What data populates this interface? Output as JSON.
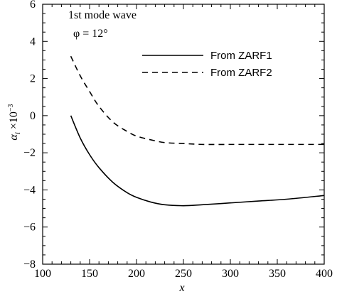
{
  "chart_data": {
    "type": "line",
    "title": "",
    "xlabel": "x",
    "ylabel": "α_i ×10^-3",
    "xlim": [
      100,
      400
    ],
    "ylim": [
      -8,
      6
    ],
    "x_ticks": [
      100,
      150,
      200,
      250,
      300,
      350,
      400
    ],
    "x_tick_labels": [
      "100",
      "150",
      "200",
      "250",
      "300",
      "350",
      "400"
    ],
    "y_ticks": [
      6,
      4,
      2,
      0,
      -2,
      -4,
      -6,
      -8
    ],
    "y_tick_labels": [
      "6",
      "4",
      "2",
      "0",
      "−2",
      "−4",
      "−6",
      "−8"
    ],
    "annotations": [
      "1st mode wave",
      "φ = 12°"
    ],
    "legend_position": "upper-right",
    "grid": false,
    "series": [
      {
        "name": "From ZARF1",
        "style": "solid",
        "color": "#000000",
        "x": [
          130,
          140,
          150,
          160,
          175,
          190,
          200,
          215,
          230,
          250,
          270,
          300,
          330,
          360,
          400
        ],
        "y": [
          0.0,
          -1.2,
          -2.1,
          -2.8,
          -3.6,
          -4.15,
          -4.4,
          -4.65,
          -4.8,
          -4.85,
          -4.8,
          -4.7,
          -4.6,
          -4.5,
          -4.3
        ]
      },
      {
        "name": "From ZARF2",
        "style": "dashed",
        "color": "#000000",
        "x": [
          130,
          140,
          150,
          160,
          175,
          190,
          200,
          215,
          230,
          250,
          270,
          300,
          330,
          360,
          400
        ],
        "y": [
          3.2,
          2.15,
          1.3,
          0.5,
          -0.35,
          -0.85,
          -1.1,
          -1.3,
          -1.45,
          -1.5,
          -1.55,
          -1.55,
          -1.55,
          -1.55,
          -1.55
        ]
      }
    ]
  }
}
